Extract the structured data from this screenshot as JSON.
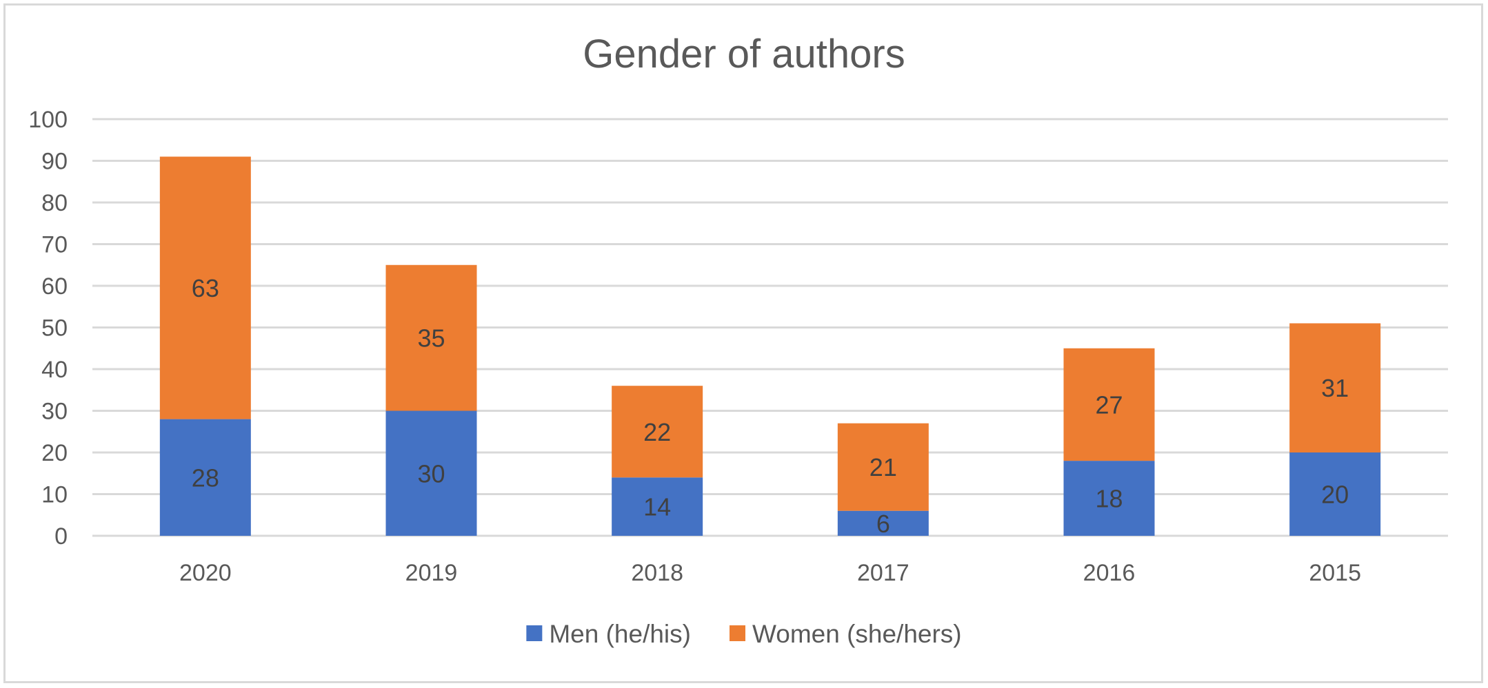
{
  "chart_data": {
    "type": "bar",
    "stacked": true,
    "title": "Gender of authors",
    "xlabel": "",
    "ylabel": "",
    "categories": [
      "2020",
      "2019",
      "2018",
      "2017",
      "2016",
      "2015"
    ],
    "series": [
      {
        "name": "Men (he/his)",
        "color": "#4472C4",
        "values": [
          28,
          30,
          14,
          6,
          18,
          20
        ]
      },
      {
        "name": "Women (she/hers)",
        "color": "#ED7D31",
        "values": [
          63,
          35,
          22,
          21,
          27,
          31
        ]
      }
    ],
    "ylim": [
      0,
      100
    ],
    "yticks": [
      "0",
      "10",
      "20",
      "30",
      "40",
      "50",
      "60",
      "70",
      "80",
      "90",
      "100"
    ],
    "grid": true,
    "legend": "bottom",
    "data_labels": true
  }
}
